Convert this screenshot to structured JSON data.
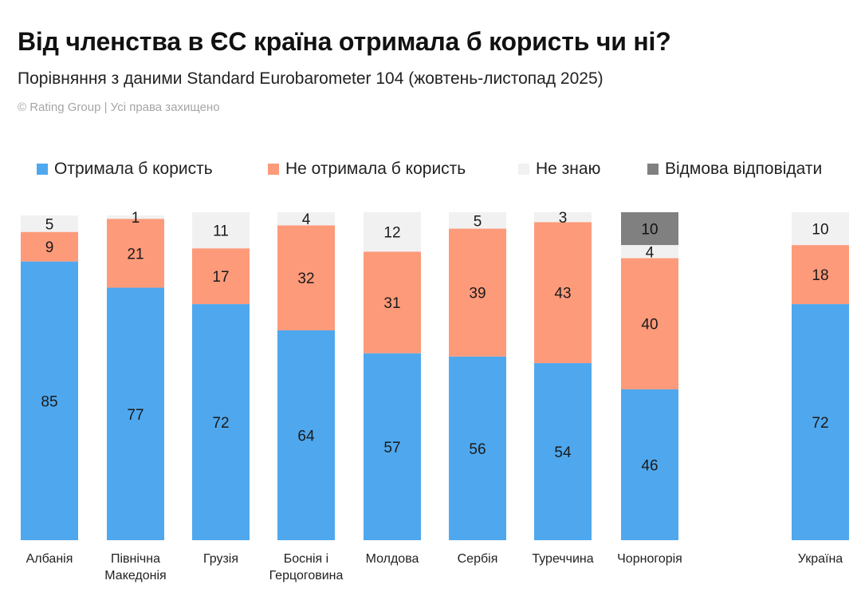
{
  "header": {
    "title": "Від членства в ЄС країна отримала б користь чи ні?",
    "subtitle": "Порівняння з даними Standard Eurobarometer 104 (жовтень-листопад 2025)",
    "credit": "© Rating Group | Усі права захищено"
  },
  "chart_data": {
    "type": "bar",
    "stacked": true,
    "categories": [
      "Албанія",
      "Північна Македонія",
      "Грузія",
      "Боснія і Герцоговина",
      "Молдова",
      "Сербія",
      "Туреччина",
      "Чорногорія",
      "Україна"
    ],
    "series": [
      {
        "name": "Отримала б користь",
        "color": "#4fa8ee",
        "values": [
          85,
          77,
          72,
          64,
          57,
          56,
          54,
          46,
          72
        ]
      },
      {
        "name": "Не отримала б користь",
        "color": "#fd9a7a",
        "values": [
          9,
          21,
          17,
          32,
          31,
          39,
          43,
          40,
          18
        ]
      },
      {
        "name": "Не знаю",
        "color": "#f1f1f1",
        "values": [
          5,
          1,
          11,
          4,
          12,
          5,
          3,
          4,
          10
        ]
      },
      {
        "name": "Відмова відповідати",
        "color": "#808080",
        "values": [
          null,
          null,
          null,
          null,
          null,
          null,
          null,
          10,
          null
        ]
      }
    ],
    "ylim": [
      0,
      100
    ],
    "grid": false,
    "legend_position": "top"
  }
}
